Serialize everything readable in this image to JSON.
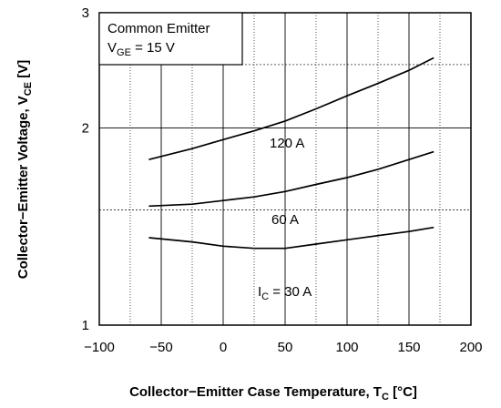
{
  "chart_data": {
    "type": "line",
    "annotation": {
      "line1": "Common Emitter",
      "line2_main": "V",
      "line2_sub": "GE",
      "line2_rest": " = 15 V"
    },
    "xlabel": {
      "main": "Collector−Emitter Case Temperature, T",
      "sub": "C",
      "rest": " [°C]"
    },
    "ylabel": {
      "main": "Collector−Emitter Voltage, V",
      "sub": "CE",
      "rest": " [V]"
    },
    "xlim": [
      -100,
      200
    ],
    "ylim": [
      1,
      3
    ],
    "y_scale": "log",
    "x_ticks": [
      -100,
      -50,
      0,
      50,
      100,
      150,
      200
    ],
    "x_tick_labels": [
      "−100",
      "−50",
      "0",
      "50",
      "100",
      "150",
      "200"
    ],
    "y_ticks": [
      1,
      2,
      3
    ],
    "y_tick_labels": [
      "1",
      "2",
      "3"
    ],
    "y_dashed_grid": [
      1.5,
      2.5
    ],
    "x_dotted_grid": [
      -75,
      -25,
      25,
      75,
      125,
      175
    ],
    "grid": true,
    "series": [
      {
        "name": "120 A",
        "label_main": "120 A",
        "x": [
          -60,
          -25,
          0,
          25,
          50,
          75,
          100,
          125,
          150,
          170
        ],
        "y": [
          1.79,
          1.86,
          1.92,
          1.98,
          2.05,
          2.14,
          2.24,
          2.34,
          2.45,
          2.56
        ]
      },
      {
        "name": "60 A",
        "label_main": "60 A",
        "x": [
          -60,
          -25,
          0,
          25,
          50,
          75,
          100,
          125,
          150,
          170
        ],
        "y": [
          1.52,
          1.53,
          1.55,
          1.57,
          1.6,
          1.64,
          1.68,
          1.73,
          1.79,
          1.84
        ]
      },
      {
        "name": "I_C = 30 A",
        "label_main": "I",
        "label_sub": "C",
        "label_rest": " = 30 A",
        "x": [
          -60,
          -25,
          0,
          25,
          50,
          75,
          100,
          125,
          150,
          170
        ],
        "y": [
          1.36,
          1.34,
          1.32,
          1.31,
          1.31,
          1.33,
          1.35,
          1.37,
          1.39,
          1.41
        ]
      }
    ]
  }
}
